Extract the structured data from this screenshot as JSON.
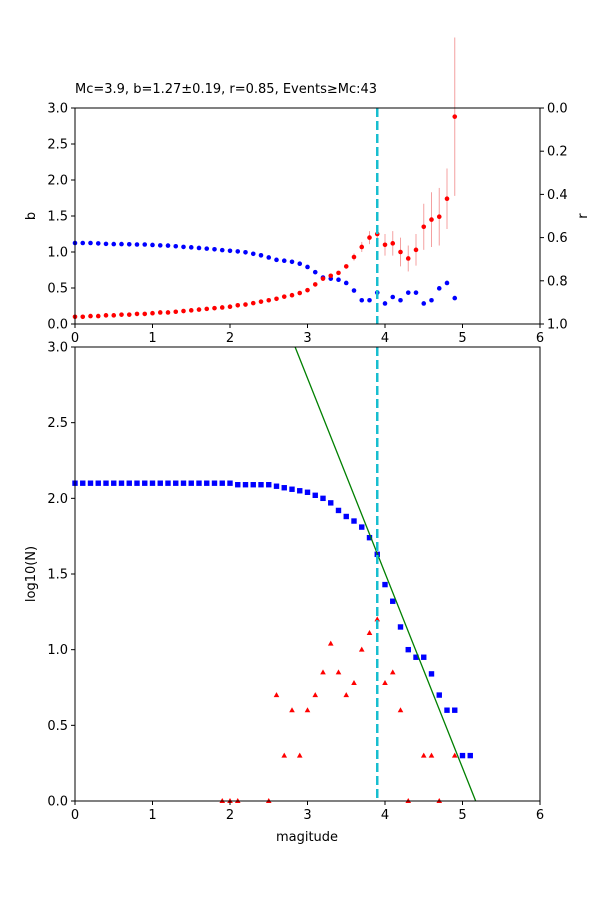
{
  "chart_data": [
    {
      "type": "scatter",
      "title": "Mc=3.9, b=1.27±0.19, r=0.85, Events≥Mc:43",
      "xlabel": "",
      "ylabel": "b",
      "ylabel_right": "r",
      "xlim": [
        0,
        6
      ],
      "ylim": [
        0,
        3
      ],
      "ylim_right": [
        1,
        0
      ],
      "x_ticks": [
        "0",
        "1",
        "2",
        "3",
        "4",
        "5",
        "6"
      ],
      "y_ticks": [
        "0.0",
        "0.5",
        "1.0",
        "1.5",
        "2.0",
        "2.5",
        "3.0"
      ],
      "y_ticks_right": [
        "0.0",
        "0.2",
        "0.4",
        "0.6",
        "0.8",
        "1.0"
      ],
      "mc_line": 3.9,
      "colors": {
        "b": "#ff0000",
        "r": "#0000ff",
        "mc": "#17becf",
        "err": "#f4a0a0"
      },
      "series": [
        {
          "axis": "left",
          "x": [
            0.0,
            0.1,
            0.2,
            0.3,
            0.4,
            0.5,
            0.6,
            0.7,
            0.8,
            0.9,
            1.0,
            1.1,
            1.2,
            1.3,
            1.4,
            1.5,
            1.6,
            1.7,
            1.8,
            1.9,
            2.0,
            2.1,
            2.2,
            2.3,
            2.4,
            2.5,
            2.6,
            2.7,
            2.8,
            2.9,
            3.0,
            3.1,
            3.2,
            3.3,
            3.4,
            3.5,
            3.6,
            3.7,
            3.8,
            3.9,
            4.0,
            4.1,
            4.2,
            4.3,
            4.4,
            4.5,
            4.6,
            4.7,
            4.8,
            4.9
          ],
          "y": [
            0.1,
            0.1,
            0.11,
            0.11,
            0.12,
            0.12,
            0.13,
            0.13,
            0.14,
            0.14,
            0.15,
            0.16,
            0.16,
            0.17,
            0.18,
            0.19,
            0.2,
            0.21,
            0.22,
            0.23,
            0.24,
            0.26,
            0.27,
            0.29,
            0.31,
            0.33,
            0.35,
            0.38,
            0.4,
            0.43,
            0.47,
            0.55,
            0.63,
            0.67,
            0.71,
            0.8,
            0.93,
            1.07,
            1.2,
            1.25,
            1.1,
            1.12,
            1.0,
            0.91,
            1.03,
            1.35,
            1.45,
            1.49,
            1.74,
            2.88
          ],
          "err": [
            0,
            0,
            0,
            0,
            0,
            0,
            0,
            0,
            0,
            0,
            0,
            0,
            0,
            0,
            0,
            0,
            0,
            0,
            0,
            0,
            0,
            0,
            0,
            0,
            0,
            0,
            0,
            0,
            0,
            0,
            0,
            0,
            0,
            0,
            0,
            0.03,
            0.05,
            0.07,
            0.09,
            0.12,
            0.15,
            0.17,
            0.2,
            0.18,
            0.22,
            0.32,
            0.38,
            0.4,
            0.42,
            1.1
          ]
        },
        {
          "axis": "right",
          "x": [
            0.0,
            0.1,
            0.2,
            0.3,
            0.4,
            0.5,
            0.6,
            0.7,
            0.8,
            0.9,
            1.0,
            1.1,
            1.2,
            1.3,
            1.4,
            1.5,
            1.6,
            1.7,
            1.8,
            1.9,
            2.0,
            2.1,
            2.2,
            2.3,
            2.4,
            2.5,
            2.6,
            2.7,
            2.8,
            2.9,
            3.0,
            3.1,
            3.2,
            3.3,
            3.4,
            3.5,
            3.6,
            3.7,
            3.8,
            3.9,
            4.0,
            4.1,
            4.2,
            4.3,
            4.4,
            4.5,
            4.6,
            4.7,
            4.8,
            4.9
          ],
          "y": [
            0.625,
            0.625,
            0.625,
            0.627,
            0.629,
            0.63,
            0.63,
            0.631,
            0.632,
            0.632,
            0.634,
            0.636,
            0.637,
            0.64,
            0.643,
            0.645,
            0.648,
            0.651,
            0.654,
            0.658,
            0.661,
            0.664,
            0.668,
            0.675,
            0.682,
            0.692,
            0.703,
            0.707,
            0.712,
            0.721,
            0.736,
            0.76,
            0.785,
            0.79,
            0.795,
            0.81,
            0.845,
            0.89,
            0.89,
            0.855,
            0.905,
            0.875,
            0.89,
            0.855,
            0.855,
            0.905,
            0.89,
            0.835,
            0.81,
            0.88
          ]
        }
      ]
    },
    {
      "type": "scatter",
      "title": "",
      "xlabel": "magitude",
      "ylabel": "log10(N)",
      "xlim": [
        0,
        6
      ],
      "ylim": [
        0,
        3
      ],
      "x_ticks": [
        "0",
        "1",
        "2",
        "3",
        "4",
        "5",
        "6"
      ],
      "y_ticks": [
        "0.0",
        "0.5",
        "1.0",
        "1.5",
        "2.0",
        "2.5",
        "3.0"
      ],
      "mc_line": 3.9,
      "fit_line": {
        "x": [
          2.84,
          5.17
        ],
        "y": [
          3.0,
          0.0
        ]
      },
      "colors": {
        "cumulative": "#0000ff",
        "noncumulative": "#ff0000",
        "fit": "#008000",
        "mc": "#17becf"
      },
      "series": [
        {
          "marker": "square",
          "x": [
            0.0,
            0.1,
            0.2,
            0.3,
            0.4,
            0.5,
            0.6,
            0.7,
            0.8,
            0.9,
            1.0,
            1.1,
            1.2,
            1.3,
            1.4,
            1.5,
            1.6,
            1.7,
            1.8,
            1.9,
            2.0,
            2.1,
            2.2,
            2.3,
            2.4,
            2.5,
            2.6,
            2.7,
            2.8,
            2.9,
            3.0,
            3.1,
            3.2,
            3.3,
            3.4,
            3.5,
            3.6,
            3.7,
            3.8,
            3.9,
            4.0,
            4.1,
            4.2,
            4.3,
            4.4,
            4.5,
            4.6,
            4.7,
            4.8,
            4.9,
            5.0,
            5.1
          ],
          "y": [
            2.1,
            2.1,
            2.1,
            2.1,
            2.1,
            2.1,
            2.1,
            2.1,
            2.1,
            2.1,
            2.1,
            2.1,
            2.1,
            2.1,
            2.1,
            2.1,
            2.1,
            2.1,
            2.1,
            2.1,
            2.1,
            2.09,
            2.09,
            2.09,
            2.09,
            2.09,
            2.08,
            2.07,
            2.06,
            2.05,
            2.04,
            2.02,
            2.0,
            1.97,
            1.92,
            1.88,
            1.85,
            1.81,
            1.74,
            1.63,
            1.43,
            1.32,
            1.15,
            1.0,
            0.95,
            0.95,
            0.84,
            0.7,
            0.6,
            0.6,
            0.3,
            0.3
          ]
        },
        {
          "marker": "triangle",
          "x": [
            1.9,
            2.0,
            2.1,
            2.5,
            2.6,
            2.7,
            2.8,
            2.9,
            3.0,
            3.1,
            3.2,
            3.3,
            3.4,
            3.5,
            3.6,
            3.7,
            3.8,
            3.9,
            4.0,
            4.1,
            4.2,
            4.3,
            4.5,
            4.6,
            4.7,
            4.9
          ],
          "y": [
            0.0,
            0.0,
            0.0,
            0.0,
            0.7,
            0.3,
            0.6,
            0.3,
            0.6,
            0.7,
            0.85,
            1.04,
            0.85,
            0.7,
            0.78,
            1.0,
            1.11,
            1.2,
            0.78,
            0.85,
            0.6,
            0.0,
            0.3,
            0.3,
            0.0,
            0.3
          ]
        }
      ]
    }
  ]
}
